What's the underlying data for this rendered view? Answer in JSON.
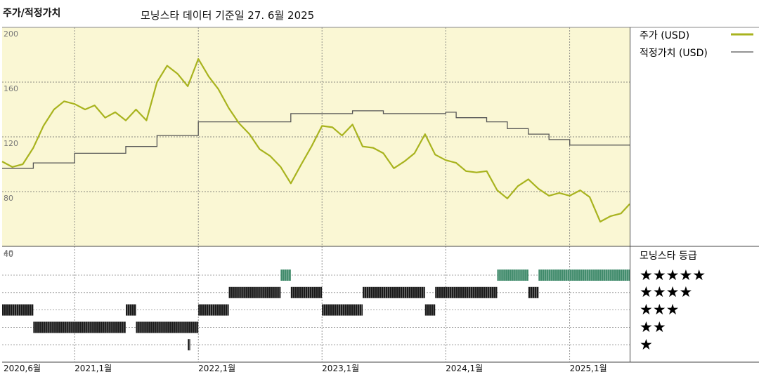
{
  "header": {
    "title": "주가/적정가치",
    "data_note": "모닝스타 데이터 기준일 27. 6월 2025"
  },
  "colors": {
    "price": "#a8b31e",
    "fair_value": "#555555",
    "plot_bg": "#faf7d4",
    "five_star": "#3f8a6a",
    "stars": "#1a1a1a"
  },
  "chart_data": {
    "type": "line",
    "title": "주가/적정가치",
    "ylim": [
      40,
      200
    ],
    "yticks": [
      200,
      160,
      120,
      80,
      40
    ],
    "x_range": [
      "2020-06-01",
      "2025-06-27"
    ],
    "x_ticks": [
      {
        "date": "2020-06-01",
        "label": "2020,6월"
      },
      {
        "date": "2021-01-01",
        "label": "2021,1월"
      },
      {
        "date": "2022-01-01",
        "label": "2022,1월"
      },
      {
        "date": "2023-01-01",
        "label": "2023,1월"
      },
      {
        "date": "2024-01-01",
        "label": "2024,1월"
      },
      {
        "date": "2025-01-01",
        "label": "2025,1월"
      }
    ],
    "legend": [
      {
        "name": "주가 (USD)",
        "key": "price"
      },
      {
        "name": "적정가치 (USD)",
        "key": "fair_value"
      }
    ],
    "price_series": [
      [
        "2020-06-01",
        102
      ],
      [
        "2020-07-01",
        98
      ],
      [
        "2020-08-01",
        100
      ],
      [
        "2020-09-01",
        112
      ],
      [
        "2020-10-01",
        128
      ],
      [
        "2020-11-01",
        140
      ],
      [
        "2020-12-01",
        146
      ],
      [
        "2021-01-01",
        144
      ],
      [
        "2021-02-01",
        140
      ],
      [
        "2021-03-01",
        143
      ],
      [
        "2021-04-01",
        134
      ],
      [
        "2021-05-01",
        138
      ],
      [
        "2021-06-01",
        132
      ],
      [
        "2021-07-01",
        140
      ],
      [
        "2021-08-01",
        132
      ],
      [
        "2021-09-01",
        160
      ],
      [
        "2021-10-01",
        172
      ],
      [
        "2021-11-01",
        166
      ],
      [
        "2021-12-01",
        157
      ],
      [
        "2022-01-01",
        177
      ],
      [
        "2022-02-01",
        164
      ],
      [
        "2022-03-01",
        155
      ],
      [
        "2022-04-01",
        141
      ],
      [
        "2022-05-01",
        130
      ],
      [
        "2022-06-01",
        122
      ],
      [
        "2022-07-01",
        111
      ],
      [
        "2022-08-01",
        106
      ],
      [
        "2022-09-01",
        98
      ],
      [
        "2022-10-01",
        86
      ],
      [
        "2022-11-01",
        100
      ],
      [
        "2022-12-01",
        113
      ],
      [
        "2023-01-01",
        128
      ],
      [
        "2023-02-01",
        127
      ],
      [
        "2023-03-01",
        121
      ],
      [
        "2023-04-01",
        129
      ],
      [
        "2023-05-01",
        113
      ],
      [
        "2023-06-01",
        112
      ],
      [
        "2023-07-01",
        108
      ],
      [
        "2023-08-01",
        97
      ],
      [
        "2023-09-01",
        102
      ],
      [
        "2023-10-01",
        108
      ],
      [
        "2023-11-01",
        122
      ],
      [
        "2023-12-01",
        107
      ],
      [
        "2024-01-01",
        103
      ],
      [
        "2024-02-01",
        101
      ],
      [
        "2024-03-01",
        95
      ],
      [
        "2024-04-01",
        94
      ],
      [
        "2024-05-01",
        95
      ],
      [
        "2024-06-01",
        81
      ],
      [
        "2024-07-01",
        75
      ],
      [
        "2024-08-01",
        84
      ],
      [
        "2024-09-01",
        89
      ],
      [
        "2024-10-01",
        82
      ],
      [
        "2024-11-01",
        77
      ],
      [
        "2024-12-01",
        79
      ],
      [
        "2025-01-01",
        77
      ],
      [
        "2025-02-01",
        81
      ],
      [
        "2025-03-01",
        76
      ],
      [
        "2025-04-01",
        58
      ],
      [
        "2025-05-01",
        62
      ],
      [
        "2025-06-01",
        64
      ],
      [
        "2025-06-27",
        71
      ]
    ],
    "fair_value_series": [
      [
        "2020-06-01",
        97
      ],
      [
        "2020-09-01",
        101
      ],
      [
        "2021-01-01",
        108
      ],
      [
        "2021-06-01",
        113
      ],
      [
        "2021-09-01",
        121
      ],
      [
        "2022-01-01",
        131
      ],
      [
        "2022-09-01",
        131
      ],
      [
        "2022-10-01",
        137
      ],
      [
        "2023-03-01",
        137
      ],
      [
        "2023-04-01",
        139
      ],
      [
        "2023-07-01",
        137
      ],
      [
        "2024-01-01",
        138
      ],
      [
        "2024-02-01",
        134
      ],
      [
        "2024-05-01",
        131
      ],
      [
        "2024-07-01",
        126
      ],
      [
        "2024-09-01",
        122
      ],
      [
        "2024-11-01",
        118
      ],
      [
        "2025-01-01",
        114
      ],
      [
        "2025-06-27",
        114
      ]
    ]
  },
  "rating_panel": {
    "title": "모닝스타 등급",
    "labels": [
      "★★★★★",
      "★★★★",
      "★★★",
      "★★",
      "★"
    ],
    "segments": [
      {
        "stars": 3,
        "start": "2020-06-01",
        "end": "2020-09-01"
      },
      {
        "stars": 2,
        "start": "2020-09-01",
        "end": "2021-06-01"
      },
      {
        "stars": 3,
        "start": "2021-06-01",
        "end": "2021-07-01"
      },
      {
        "stars": 2,
        "start": "2021-07-01",
        "end": "2022-01-01"
      },
      {
        "stars": 1,
        "start": "2021-12-01",
        "end": "2021-12-08"
      },
      {
        "stars": 3,
        "start": "2022-01-01",
        "end": "2022-04-01"
      },
      {
        "stars": 4,
        "start": "2022-04-01",
        "end": "2022-09-01"
      },
      {
        "stars": 5,
        "start": "2022-09-01",
        "end": "2022-10-01"
      },
      {
        "stars": 4,
        "start": "2022-10-01",
        "end": "2023-01-01"
      },
      {
        "stars": 3,
        "start": "2023-01-01",
        "end": "2023-05-01"
      },
      {
        "stars": 4,
        "start": "2023-05-01",
        "end": "2023-11-01"
      },
      {
        "stars": 3,
        "start": "2023-11-01",
        "end": "2023-12-01"
      },
      {
        "stars": 4,
        "start": "2023-12-01",
        "end": "2024-06-01"
      },
      {
        "stars": 5,
        "start": "2024-06-01",
        "end": "2024-09-01"
      },
      {
        "stars": 4,
        "start": "2024-09-01",
        "end": "2024-10-01"
      },
      {
        "stars": 5,
        "start": "2024-10-01",
        "end": "2025-06-27"
      }
    ]
  }
}
